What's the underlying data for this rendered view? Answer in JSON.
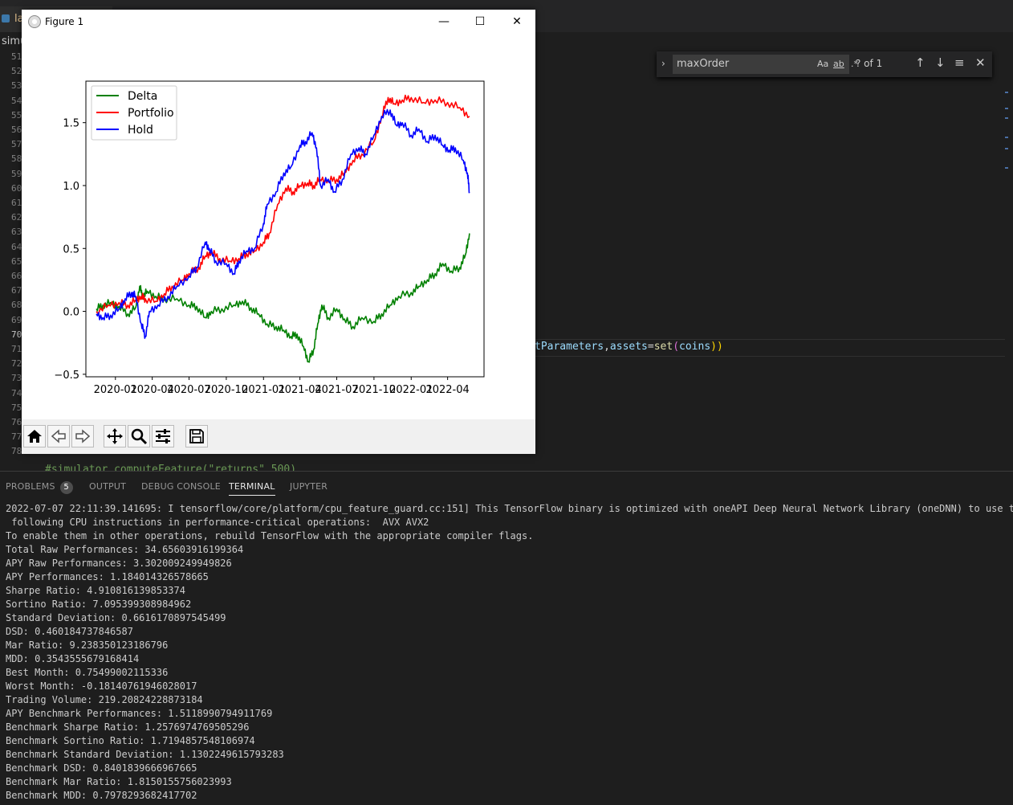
{
  "editor": {
    "tab_label": "la",
    "breadcrumb": "simu",
    "line_numbers": [
      "51",
      "52",
      "53",
      "54",
      "55",
      "56",
      "57",
      "58",
      "59",
      "60",
      "61",
      "62",
      "63",
      "64",
      "65",
      "66",
      "67",
      "68",
      "69",
      "70",
      "71",
      "72",
      "73",
      "74",
      "75",
      "76",
      "77",
      "78"
    ],
    "code_line_70": {
      "p1": "tParameters",
      "p2": ",",
      "p3": "assets",
      "p4": "=",
      "p5": "set",
      "p6": "(",
      "p7": "coins",
      "p8": "))"
    },
    "comment_78": "#simulator.computeFeature(\"returns\",500)"
  },
  "find_widget": {
    "query": "maxOrder",
    "match_case": "Aa",
    "whole_word": "ab",
    "regex": ".*",
    "result": "? of 1"
  },
  "figure_window": {
    "title": "Figure 1",
    "minimize": "—",
    "maximize": "☐",
    "close": "✕"
  },
  "chart_data": {
    "type": "line",
    "title": "",
    "xlabel": "",
    "ylabel": "",
    "x_ticks": [
      "2020-01",
      "2020-04",
      "2020-07",
      "2020-10",
      "2021-01",
      "2021-04",
      "2021-07",
      "2021-10",
      "2022-01",
      "2022-04"
    ],
    "y_ticks": [
      "−0.5",
      "0.0",
      "0.5",
      "1.0",
      "1.5"
    ],
    "ylim": [
      -0.52,
      1.83
    ],
    "xlim": [
      "2019-10-20",
      "2022-06-30"
    ],
    "legend_position": "top-left",
    "series": [
      {
        "name": "Delta",
        "color": "#008000",
        "points": [
          [
            "2019-11-15",
            0.02
          ],
          [
            "2019-12-01",
            0.05
          ],
          [
            "2019-12-20",
            0.07
          ],
          [
            "2020-01-10",
            0.04
          ],
          [
            "2020-02-01",
            -0.02
          ],
          [
            "2020-02-20",
            0.03
          ],
          [
            "2020-03-01",
            0.2
          ],
          [
            "2020-03-08",
            0.12
          ],
          [
            "2020-03-20",
            0.16
          ],
          [
            "2020-04-10",
            0.12
          ],
          [
            "2020-05-01",
            0.1
          ],
          [
            "2020-06-01",
            0.1
          ],
          [
            "2020-07-01",
            0.05
          ],
          [
            "2020-07-20",
            0.04
          ],
          [
            "2020-08-10",
            -0.05
          ],
          [
            "2020-08-25",
            0.0
          ],
          [
            "2020-09-20",
            0.02
          ],
          [
            "2020-10-20",
            0.05
          ],
          [
            "2020-11-10",
            0.08
          ],
          [
            "2020-12-01",
            0.03
          ],
          [
            "2020-12-20",
            -0.02
          ],
          [
            "2021-01-10",
            -0.1
          ],
          [
            "2021-02-01",
            -0.12
          ],
          [
            "2021-02-20",
            -0.15
          ],
          [
            "2021-03-10",
            -0.2
          ],
          [
            "2021-03-25",
            -0.18
          ],
          [
            "2021-04-10",
            -0.28
          ],
          [
            "2021-04-22",
            -0.4
          ],
          [
            "2021-05-05",
            -0.3
          ],
          [
            "2021-05-15",
            -0.1
          ],
          [
            "2021-05-25",
            0.05
          ],
          [
            "2021-06-10",
            -0.05
          ],
          [
            "2021-07-01",
            0.02
          ],
          [
            "2021-07-20",
            -0.06
          ],
          [
            "2021-08-10",
            -0.12
          ],
          [
            "2021-09-01",
            -0.05
          ],
          [
            "2021-10-01",
            -0.08
          ],
          [
            "2021-10-20",
            -0.02
          ],
          [
            "2021-11-10",
            0.05
          ],
          [
            "2021-12-01",
            0.12
          ],
          [
            "2022-01-01",
            0.15
          ],
          [
            "2022-01-20",
            0.2
          ],
          [
            "2022-02-10",
            0.25
          ],
          [
            "2022-03-01",
            0.3
          ],
          [
            "2022-03-20",
            0.38
          ],
          [
            "2022-04-10",
            0.32
          ],
          [
            "2022-05-01",
            0.35
          ],
          [
            "2022-05-15",
            0.45
          ],
          [
            "2022-05-25",
            0.62
          ]
        ]
      },
      {
        "name": "Portfolio",
        "color": "#ff0000",
        "points": [
          [
            "2019-11-15",
            0.0
          ],
          [
            "2019-12-15",
            0.05
          ],
          [
            "2020-01-10",
            0.07
          ],
          [
            "2020-02-01",
            0.05
          ],
          [
            "2020-02-20",
            0.09
          ],
          [
            "2020-03-05",
            0.12
          ],
          [
            "2020-03-15",
            0.1
          ],
          [
            "2020-04-10",
            0.08
          ],
          [
            "2020-05-01",
            0.14
          ],
          [
            "2020-05-20",
            0.2
          ],
          [
            "2020-06-15",
            0.25
          ],
          [
            "2020-07-01",
            0.3
          ],
          [
            "2020-07-25",
            0.35
          ],
          [
            "2020-08-10",
            0.44
          ],
          [
            "2020-08-25",
            0.47
          ],
          [
            "2020-09-15",
            0.42
          ],
          [
            "2020-10-10",
            0.4
          ],
          [
            "2020-11-01",
            0.42
          ],
          [
            "2020-11-20",
            0.46
          ],
          [
            "2020-12-10",
            0.48
          ],
          [
            "2021-01-01",
            0.55
          ],
          [
            "2021-01-15",
            0.62
          ],
          [
            "2021-02-05",
            0.85
          ],
          [
            "2021-02-25",
            0.98
          ],
          [
            "2021-03-15",
            0.95
          ],
          [
            "2021-04-01",
            1.0
          ],
          [
            "2021-04-20",
            1.02
          ],
          [
            "2021-05-05",
            1.0
          ],
          [
            "2021-05-20",
            1.05
          ],
          [
            "2021-06-10",
            1.04
          ],
          [
            "2021-07-01",
            1.05
          ],
          [
            "2021-07-20",
            1.1
          ],
          [
            "2021-08-10",
            1.2
          ],
          [
            "2021-09-01",
            1.25
          ],
          [
            "2021-10-01",
            1.35
          ],
          [
            "2021-10-20",
            1.55
          ],
          [
            "2021-11-05",
            1.7
          ],
          [
            "2021-11-20",
            1.65
          ],
          [
            "2021-12-10",
            1.68
          ],
          [
            "2022-01-01",
            1.7
          ],
          [
            "2022-02-01",
            1.66
          ],
          [
            "2022-03-01",
            1.68
          ],
          [
            "2022-04-01",
            1.66
          ],
          [
            "2022-05-01",
            1.62
          ],
          [
            "2022-05-25",
            1.55
          ]
        ]
      },
      {
        "name": "Hold",
        "color": "#0000ff",
        "points": [
          [
            "2019-11-15",
            -0.02
          ],
          [
            "2019-12-01",
            -0.05
          ],
          [
            "2019-12-20",
            -0.03
          ],
          [
            "2020-01-10",
            0.02
          ],
          [
            "2020-01-25",
            0.1
          ],
          [
            "2020-02-10",
            0.15
          ],
          [
            "2020-02-20",
            0.12
          ],
          [
            "2020-03-05",
            -0.1
          ],
          [
            "2020-03-15",
            -0.2
          ],
          [
            "2020-03-25",
            0.0
          ],
          [
            "2020-04-15",
            0.05
          ],
          [
            "2020-05-10",
            0.12
          ],
          [
            "2020-06-01",
            0.2
          ],
          [
            "2020-07-01",
            0.28
          ],
          [
            "2020-07-20",
            0.35
          ],
          [
            "2020-08-10",
            0.55
          ],
          [
            "2020-08-20",
            0.5
          ],
          [
            "2020-09-05",
            0.4
          ],
          [
            "2020-10-01",
            0.38
          ],
          [
            "2020-10-20",
            0.3
          ],
          [
            "2020-11-01",
            0.4
          ],
          [
            "2020-11-20",
            0.48
          ],
          [
            "2020-12-10",
            0.5
          ],
          [
            "2021-01-01",
            0.7
          ],
          [
            "2021-01-10",
            0.85
          ],
          [
            "2021-02-01",
            0.95
          ],
          [
            "2021-02-20",
            1.1
          ],
          [
            "2021-03-10",
            1.15
          ],
          [
            "2021-04-01",
            1.32
          ],
          [
            "2021-04-15",
            1.35
          ],
          [
            "2021-05-01",
            1.42
          ],
          [
            "2021-05-12",
            1.3
          ],
          [
            "2021-05-22",
            1.0
          ],
          [
            "2021-06-10",
            1.05
          ],
          [
            "2021-06-25",
            0.95
          ],
          [
            "2021-07-15",
            1.05
          ],
          [
            "2021-08-05",
            1.25
          ],
          [
            "2021-08-25",
            1.3
          ],
          [
            "2021-09-10",
            1.25
          ],
          [
            "2021-10-01",
            1.4
          ],
          [
            "2021-10-20",
            1.55
          ],
          [
            "2021-11-10",
            1.6
          ],
          [
            "2021-11-25",
            1.48
          ],
          [
            "2021-12-10",
            1.5
          ],
          [
            "2022-01-01",
            1.4
          ],
          [
            "2022-01-20",
            1.45
          ],
          [
            "2022-02-10",
            1.35
          ],
          [
            "2022-03-01",
            1.4
          ],
          [
            "2022-03-20",
            1.32
          ],
          [
            "2022-04-05",
            1.28
          ],
          [
            "2022-04-20",
            1.3
          ],
          [
            "2022-05-10",
            1.2
          ],
          [
            "2022-05-20",
            1.1
          ],
          [
            "2022-05-25",
            0.95
          ]
        ]
      }
    ]
  },
  "bottom_panel": {
    "tabs": [
      {
        "label": "PROBLEMS",
        "badge": "5"
      },
      {
        "label": "OUTPUT"
      },
      {
        "label": "DEBUG CONSOLE"
      },
      {
        "label": "TERMINAL"
      },
      {
        "label": "JUPYTER"
      }
    ],
    "terminal_lines": [
      "2022-07-07 22:11:39.141695: I tensorflow/core/platform/cpu_feature_guard.cc:151] This TensorFlow binary is optimized with oneAPI Deep Neural Network Library (oneDNN) to use the",
      " following CPU instructions in performance-critical operations:  AVX AVX2",
      "To enable them in other operations, rebuild TensorFlow with the appropriate compiler flags.",
      "Total Raw Performances: 34.65603916199364",
      "APY Raw Performances: 3.302009249949826",
      "APY Performances: 1.184014326578665",
      "Sharpe Ratio: 4.910816139853374",
      "Sortino Ratio: 7.095399308984962",
      "Standard Deviation: 0.6616170897545499",
      "DSD: 0.460184737846587",
      "Mar Ratio: 9.238350123186796",
      "MDD: 0.3543555679168414",
      "Best Month: 0.75499002115336",
      "Worst Month: -0.18140761946028017",
      "Trading Volume: 219.20824228873184",
      "APY Benchmark Performances: 1.5118990794911769",
      "Benchmark Sharpe Ratio: 1.2576974769505296",
      "Benchmark Sortino Ratio: 1.7194857548106974",
      "Benchmark Standard Deviation: 1.1302249615793283",
      "Benchmark DSD: 0.8401839666967665",
      "Benchmark Mar Ratio: 1.8150155756023993",
      "Benchmark MDD: 0.7978293682417702"
    ]
  }
}
